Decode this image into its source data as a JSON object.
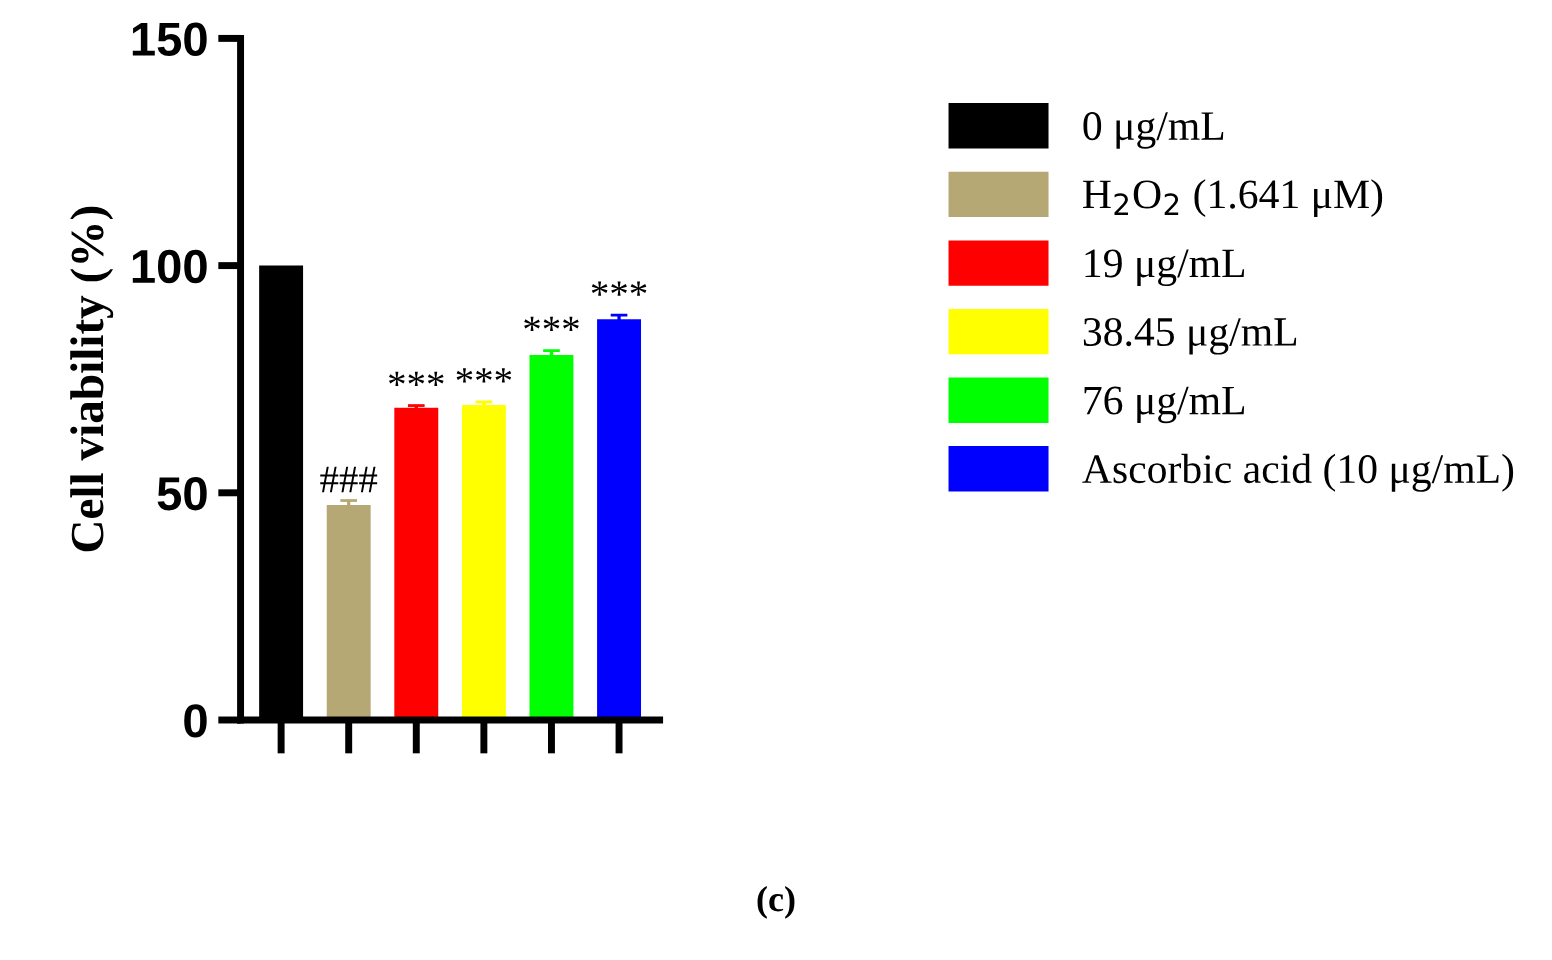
{
  "chart_data": {
    "type": "bar",
    "ylabel": "Cell viability (%)",
    "categories": [
      null,
      null,
      null,
      null,
      null,
      null
    ],
    "series": [
      {
        "name": "0 μg/mL",
        "color": "#000000",
        "values": [
          100,
          null,
          null,
          null,
          null,
          null
        ]
      },
      {
        "name": "H$_{2}$O$_{2}$ (1.641 μM)",
        "color": "#b5a874",
        "values": [
          null,
          47.3,
          null,
          null,
          null,
          null
        ],
        "errors": [
          null,
          1,
          null,
          null,
          null,
          null
        ],
        "value_labels": [
          null,
          "###",
          null,
          null,
          null,
          null
        ]
      },
      {
        "name": "19 μg/mL",
        "color": "#ff0000",
        "values": [
          null,
          null,
          68.7,
          null,
          null,
          null
        ],
        "errors": [
          null,
          null,
          0.5,
          null,
          null,
          null
        ],
        "value_labels": [
          null,
          null,
          "***",
          null,
          null,
          null
        ]
      },
      {
        "name": "38.45 μg/mL",
        "color": "#ffff00",
        "values": [
          null,
          null,
          null,
          69.3,
          null,
          null
        ],
        "errors": [
          null,
          null,
          null,
          0.7,
          null,
          null
        ],
        "value_labels": [
          null,
          null,
          null,
          "***",
          null,
          null
        ]
      },
      {
        "name": "76 μg/mL",
        "color": "#00ff00",
        "values": [
          null,
          null,
          null,
          null,
          80.3,
          null
        ],
        "errors": [
          null,
          null,
          null,
          null,
          1,
          null
        ],
        "value_labels": [
          null,
          null,
          null,
          null,
          "***",
          null
        ]
      },
      {
        "name": "Ascorbic acid (10 μg/mL)",
        "color": "#0000ff",
        "values": [
          null,
          null,
          null,
          null,
          null,
          88.2
        ],
        "errors": [
          null,
          null,
          null,
          null,
          null,
          0.9
        ],
        "value_labels": [
          null,
          null,
          null,
          null,
          null,
          "***"
        ]
      }
    ],
    "ylim": [
      0,
      150
    ],
    "yticks": [
      0,
      50,
      100,
      150
    ],
    "tick_labels": "y",
    "grid": false,
    "legend": "right",
    "annotations": [
      "(c)"
    ]
  }
}
